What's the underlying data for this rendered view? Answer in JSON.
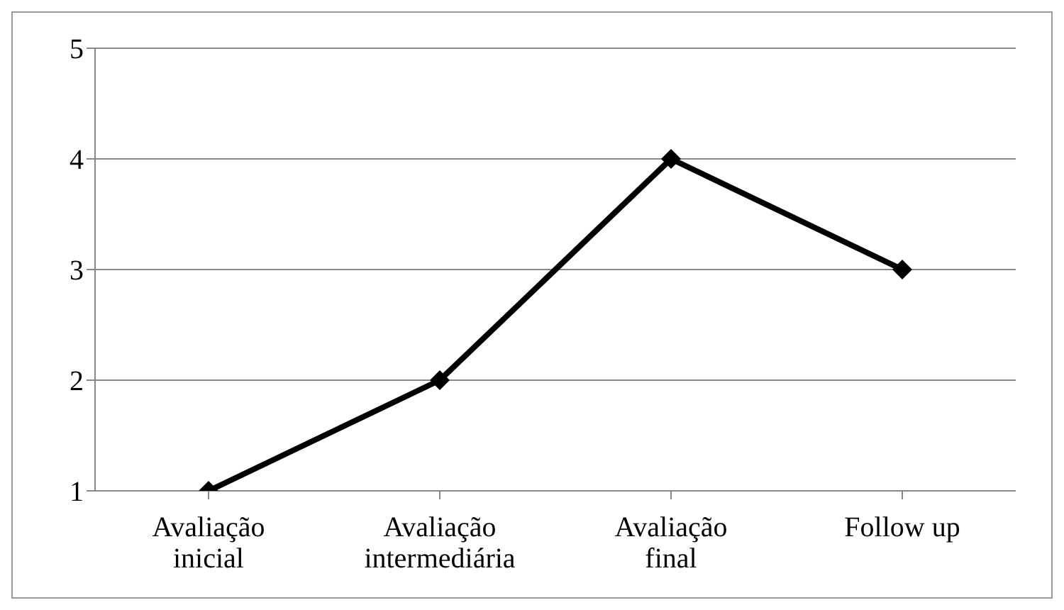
{
  "chart_data": {
    "type": "line",
    "categories": [
      "Avaliação inicial",
      "Avaliação intermediária",
      "Avaliação final",
      "Follow up"
    ],
    "series": [
      {
        "color": "#000000",
        "values": [
          1,
          2,
          4,
          3
        ]
      }
    ],
    "ylim": [
      1,
      5
    ],
    "yticks": [
      1,
      2,
      3,
      4,
      5
    ],
    "grid": "y",
    "marker": "diamond",
    "line_style": "solid"
  }
}
